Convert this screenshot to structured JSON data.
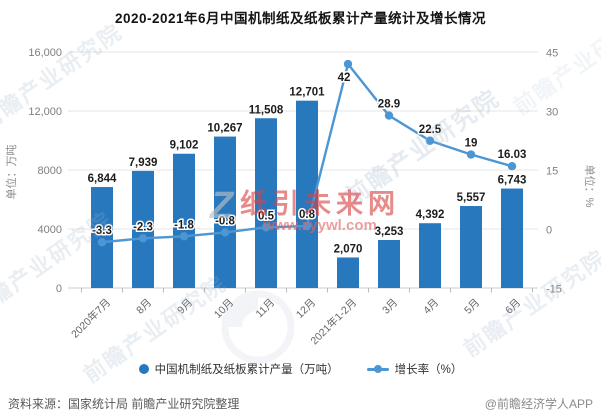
{
  "title": "2020-2021年6月中国机制纸及纸板累计产量统计及增长情况",
  "chart_data": {
    "type": "bar+line combo",
    "categories": [
      "2020年7月",
      "8月",
      "9月",
      "10月",
      "11月",
      "12月",
      "2021年1-2月",
      "3月",
      "4月",
      "5月",
      "6月"
    ],
    "series": [
      {
        "name": "中国机制纸及纸板累计产量（万吨）",
        "type": "bar",
        "axis": "left",
        "values": [
          6844,
          7939,
          9102,
          10267,
          11508,
          12701,
          2070,
          3253,
          4392,
          5557,
          6743
        ],
        "labels": [
          "6,844",
          "7,939",
          "9,102",
          "10,267",
          "11,508",
          "12,701",
          "2,070",
          "3,253",
          "4,392",
          "5,557",
          "6,743"
        ],
        "color": "#2878BE"
      },
      {
        "name": "增长率（%）",
        "type": "line",
        "axis": "right",
        "values": [
          -3.3,
          -2.3,
          -1.8,
          -0.8,
          0.5,
          0.8,
          42,
          28.9,
          22.5,
          19,
          16.03
        ],
        "labels": [
          "-3.3",
          "-2.3",
          "-1.8",
          "-0.8",
          "0.5",
          "0.8",
          "42",
          "28.9",
          "22.5",
          "19",
          "16.03"
        ],
        "color": "#4D96D4"
      }
    ],
    "left_axis": {
      "title": "单位：万吨",
      "range": [
        0,
        16000
      ],
      "ticks": [
        0,
        4000,
        8000,
        12000,
        16000
      ],
      "tick_labels": [
        "0",
        "4000",
        "8000",
        "12,000",
        "16,000"
      ]
    },
    "right_axis": {
      "title": "单位：%",
      "range": [
        -15,
        45
      ],
      "ticks": [
        -15,
        0,
        15,
        30,
        45
      ],
      "tick_labels": [
        "-15",
        "0",
        "15",
        "30",
        "45"
      ]
    },
    "grid": true,
    "legend_position": "bottom"
  },
  "footer": {
    "source": "资料来源：国家统计局 前瞻产业研究院整理",
    "credit": "@前瞻经济学人APP"
  },
  "watermarks": {
    "diagonal": "前瞻产业研究院",
    "center_main": "纸引未来网",
    "center_sub": "www.zyywl.com",
    "center_logo_letter": "Z"
  },
  "colors": {
    "bar": "#2878BE",
    "line": "#4D96D4",
    "grid": "#e4e4e4",
    "axis": "#cccccc",
    "tick_text": "#7f7f7f",
    "data_label": "#1c1c1c",
    "watermark_red": "#d94343"
  }
}
